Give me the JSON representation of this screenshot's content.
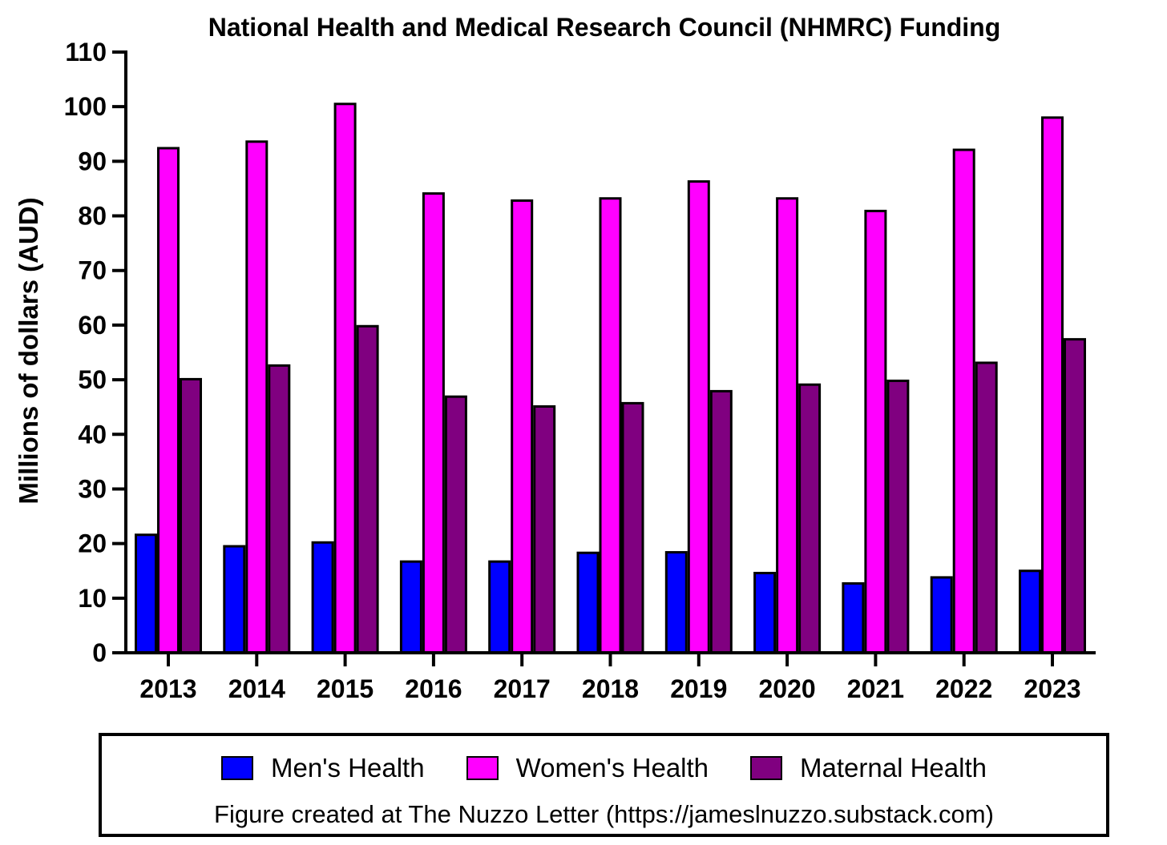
{
  "chart_data": {
    "type": "bar",
    "title": "National Health and Medical Research Council (NHMRC) Funding",
    "ylabel": "Millions of dollars (AUD)",
    "xlabel": "",
    "ylim": [
      0,
      110
    ],
    "yticks": [
      0,
      10,
      20,
      30,
      40,
      50,
      60,
      70,
      80,
      90,
      100,
      110
    ],
    "categories": [
      "2013",
      "2014",
      "2015",
      "2016",
      "2017",
      "2018",
      "2019",
      "2020",
      "2021",
      "2022",
      "2023"
    ],
    "series": [
      {
        "name": "Men's Health",
        "color": "#0000ff",
        "values": [
          21.6,
          19.5,
          20.2,
          16.7,
          16.7,
          18.3,
          18.4,
          14.6,
          12.7,
          13.8,
          15.0
        ]
      },
      {
        "name": "Women's Health",
        "color": "#ff00ff",
        "values": [
          92.4,
          93.6,
          100.5,
          84.1,
          82.8,
          83.2,
          86.3,
          83.2,
          80.9,
          92.1,
          98.0
        ]
      },
      {
        "name": "Maternal Health",
        "color": "#800080",
        "values": [
          50.1,
          52.6,
          59.8,
          46.9,
          45.1,
          45.7,
          47.9,
          49.1,
          49.8,
          53.1,
          57.4
        ]
      }
    ],
    "grid": false,
    "legend_position": "bottom"
  },
  "legend": {
    "credit": "Figure created at The Nuzzo Letter (https://jameslnuzzo.substack.com)"
  }
}
